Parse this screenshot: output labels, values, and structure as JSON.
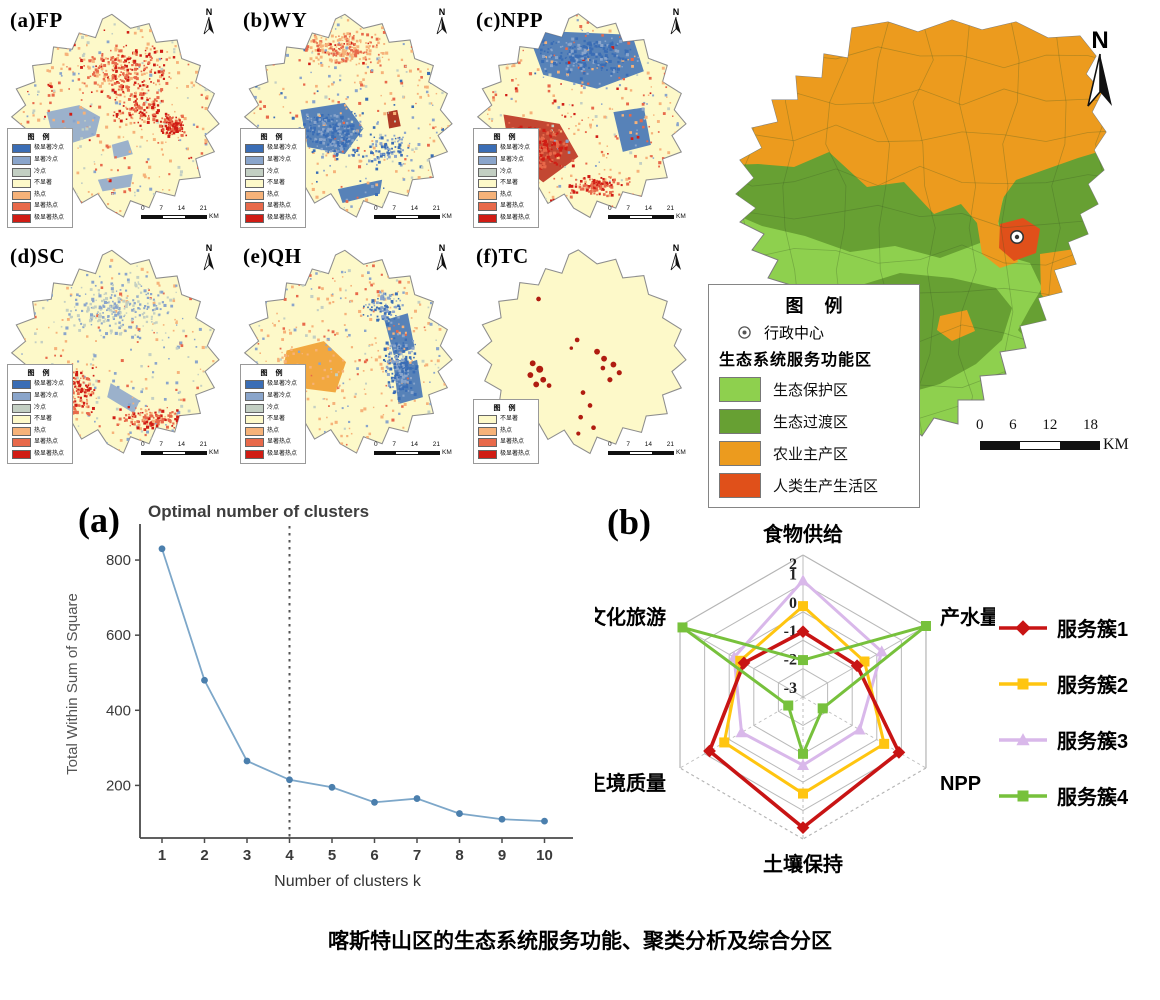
{
  "figure": {
    "caption": "喀斯特山区的生态系统服务功能、聚类分析及综合分区"
  },
  "hotspot_maps": {
    "panels": [
      {
        "label": "(a)FP"
      },
      {
        "label": "(b)WY"
      },
      {
        "label": "(c)NPP"
      },
      {
        "label": "(d)SC"
      },
      {
        "label": "(e)QH"
      },
      {
        "label": "(f)TC"
      }
    ],
    "legend_title": "图 例",
    "legend_full": [
      {
        "label": "极显著冷点",
        "color": "#3a6db5"
      },
      {
        "label": "显著冷点",
        "color": "#8aa5cb"
      },
      {
        "label": "冷点",
        "color": "#c3cfc3"
      },
      {
        "label": "不显著",
        "color": "#fdf9c9"
      },
      {
        "label": "热点",
        "color": "#f6b279"
      },
      {
        "label": "显著热点",
        "color": "#e8694a"
      },
      {
        "label": "极显著热点",
        "color": "#d01c14"
      }
    ],
    "legend_tc": [
      {
        "label": "不显著",
        "color": "#fdf9c9"
      },
      {
        "label": "热点",
        "color": "#f6b279"
      },
      {
        "label": "显著热点",
        "color": "#e8694a"
      },
      {
        "label": "极显著热点",
        "color": "#d01c14"
      }
    ],
    "north_label": "N",
    "scalebar_ticks": [
      "0",
      "7",
      "14",
      "21"
    ],
    "scalebar_unit": "KM"
  },
  "zoning_map": {
    "north_label": "N",
    "legend_title": "图 例",
    "admin_center_label": "行政中心",
    "legend_subtitle": "生态系统服务功能区",
    "zones": [
      {
        "label": "生态保护区",
        "color": "#8ed04e"
      },
      {
        "label": "生态过渡区",
        "color": "#67a033"
      },
      {
        "label": "农业主产区",
        "color": "#ec9b1e"
      },
      {
        "label": "人类生产生活区",
        "color": "#e0501a"
      }
    ],
    "scalebar_ticks": [
      "0",
      "6",
      "12",
      "18"
    ],
    "scalebar_unit": "KM"
  },
  "chart_data": [
    {
      "type": "line",
      "panel_label": "(a)",
      "title": "Optimal number of clusters",
      "xlabel": "Number of clusters k",
      "ylabel": "Total Within Sum of Square",
      "x": [
        1,
        2,
        3,
        4,
        5,
        6,
        7,
        8,
        9,
        10
      ],
      "values": [
        830,
        480,
        265,
        215,
        195,
        155,
        165,
        125,
        110,
        105
      ],
      "yticks": [
        200,
        400,
        600,
        800
      ],
      "ylim": [
        60,
        880
      ],
      "optimal_k_vline": 4,
      "line_color": "#7da7c9",
      "marker_color": "#4b7fad",
      "grid": false,
      "legend_position": "none"
    },
    {
      "type": "radar",
      "panel_label": "(b)",
      "categories": [
        "食物供给",
        "产水量",
        "NPP",
        "土壤保持",
        "生境质量",
        "文化旅游"
      ],
      "ring_labels": [
        "2",
        "1",
        "0",
        "-1",
        "-2",
        "-3"
      ],
      "rmin": -3,
      "rmax": 2,
      "legend_position": "right",
      "series": [
        {
          "name": "服务簇1",
          "color": "#c81414",
          "marker": "diamond",
          "values": [
            -0.7,
            -0.8,
            0.9,
            1.6,
            0.8,
            -0.6
          ]
        },
        {
          "name": "服务簇2",
          "color": "#ffc510",
          "marker": "square",
          "values": [
            0.2,
            -0.5,
            0.3,
            0.4,
            0.2,
            -0.45
          ]
        },
        {
          "name": "服务簇3",
          "color": "#d9b8ea",
          "marker": "triangle",
          "values": [
            1.1,
            0.2,
            -0.7,
            -0.6,
            -0.5,
            -0.2
          ]
        },
        {
          "name": "服务簇4",
          "color": "#77c13c",
          "marker": "square",
          "values": [
            -1.7,
            2.0,
            -2.2,
            -1.0,
            -2.4,
            1.9
          ]
        }
      ]
    }
  ]
}
